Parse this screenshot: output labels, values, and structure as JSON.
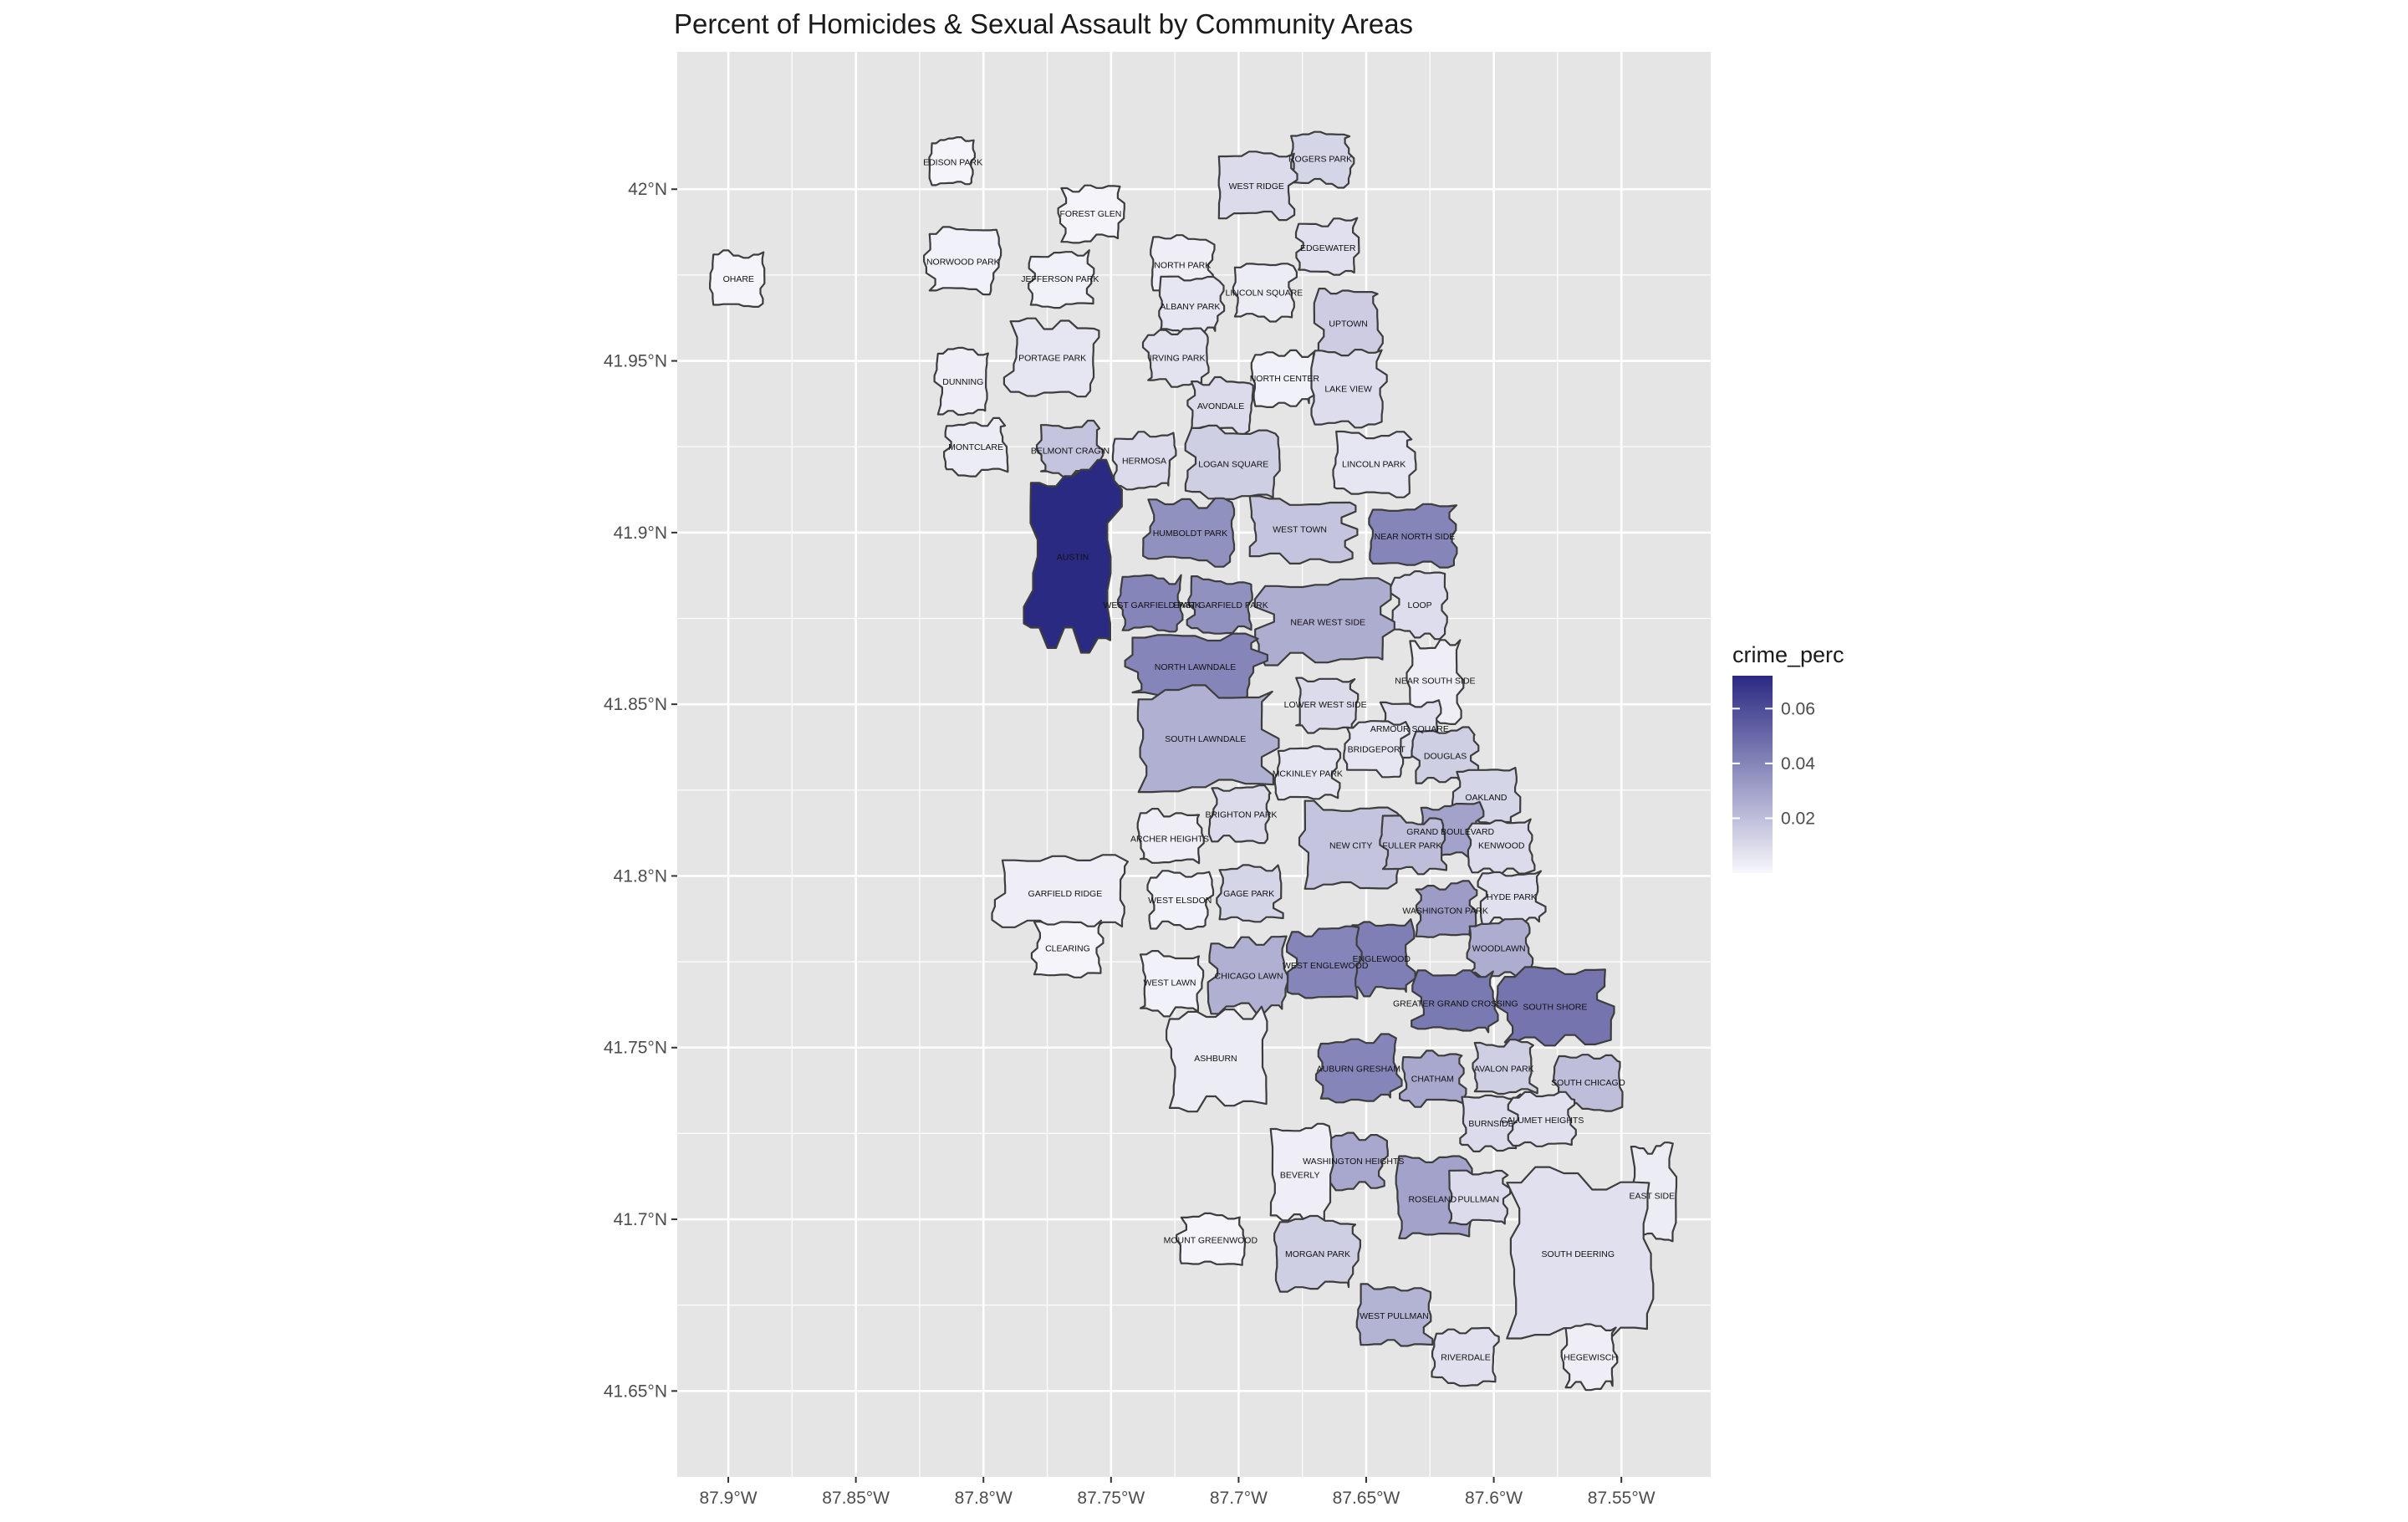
{
  "title": "Percent of Homicides & Sexual Assault by Community Areas",
  "colors": {
    "panel": "#e5e5e5",
    "grid": "#ffffff",
    "low": "#f7f7fc",
    "high": "#2b2a83",
    "border": "#3d3d3d"
  },
  "chart_data": {
    "type": "choropleth",
    "title": "Percent of Homicides & Sexual Assault by Community Areas",
    "xlim": [
      -87.92,
      -87.515
    ],
    "ylim": [
      41.625,
      42.04
    ],
    "x_ticks": [
      {
        "value": -87.9,
        "label": "87.9°W"
      },
      {
        "value": -87.85,
        "label": "87.85°W"
      },
      {
        "value": -87.8,
        "label": "87.8°W"
      },
      {
        "value": -87.75,
        "label": "87.75°W"
      },
      {
        "value": -87.7,
        "label": "87.7°W"
      },
      {
        "value": -87.65,
        "label": "87.65°W"
      },
      {
        "value": -87.6,
        "label": "87.6°W"
      },
      {
        "value": -87.55,
        "label": "87.55°W"
      }
    ],
    "y_ticks": [
      {
        "value": 42.0,
        "label": "42°N"
      },
      {
        "value": 41.95,
        "label": "41.95°N"
      },
      {
        "value": 41.9,
        "label": "41.9°N"
      },
      {
        "value": 41.85,
        "label": "41.85°N"
      },
      {
        "value": 41.8,
        "label": "41.8°N"
      },
      {
        "value": 41.75,
        "label": "41.75°N"
      },
      {
        "value": 41.7,
        "label": "41.7°N"
      },
      {
        "value": 41.65,
        "label": "41.65°N"
      }
    ],
    "legend": {
      "title": "crime_perc",
      "min": 0.0,
      "max": 0.072,
      "ticks": [
        {
          "value": 0.02,
          "label": "0.02"
        },
        {
          "value": 0.04,
          "label": "0.04"
        },
        {
          "value": 0.06,
          "label": "0.06"
        }
      ],
      "position": "right"
    },
    "areas": [
      {
        "name": "EDISON PARK",
        "lon": -87.812,
        "lat": 42.008,
        "value": 0.001
      },
      {
        "name": "FOREST GLEN",
        "lon": -87.758,
        "lat": 41.993,
        "value": 0.001
      },
      {
        "name": "ROGERS PARK",
        "lon": -87.668,
        "lat": 42.009,
        "value": 0.012
      },
      {
        "name": "WEST RIDGE",
        "lon": -87.693,
        "lat": 42.001,
        "value": 0.01
      },
      {
        "name": "NORWOOD PARK",
        "lon": -87.808,
        "lat": 41.979,
        "value": 0.002
      },
      {
        "name": "NORTH PARK",
        "lon": -87.722,
        "lat": 41.978,
        "value": 0.003
      },
      {
        "name": "EDGEWATER",
        "lon": -87.665,
        "lat": 41.983,
        "value": 0.008
      },
      {
        "name": "OHARE",
        "lon": -87.896,
        "lat": 41.974,
        "value": 0.001
      },
      {
        "name": "JEFFERSON PARK",
        "lon": -87.77,
        "lat": 41.974,
        "value": 0.002
      },
      {
        "name": "LINCOLN SQUARE",
        "lon": -87.69,
        "lat": 41.97,
        "value": 0.004
      },
      {
        "name": "ALBANY PARK",
        "lon": -87.719,
        "lat": 41.966,
        "value": 0.006
      },
      {
        "name": "UPTOWN",
        "lon": -87.657,
        "lat": 41.961,
        "value": 0.015
      },
      {
        "name": "PORTAGE PARK",
        "lon": -87.773,
        "lat": 41.951,
        "value": 0.006
      },
      {
        "name": "IRVING PARK",
        "lon": -87.724,
        "lat": 41.951,
        "value": 0.007
      },
      {
        "name": "NORTH CENTER",
        "lon": -87.682,
        "lat": 41.945,
        "value": 0.002
      },
      {
        "name": "DUNNING",
        "lon": -87.808,
        "lat": 41.944,
        "value": 0.003
      },
      {
        "name": "LAKE VIEW",
        "lon": -87.657,
        "lat": 41.942,
        "value": 0.009
      },
      {
        "name": "AVONDALE",
        "lon": -87.707,
        "lat": 41.937,
        "value": 0.01
      },
      {
        "name": "MONTCLARE",
        "lon": -87.803,
        "lat": 41.925,
        "value": 0.004
      },
      {
        "name": "BELMONT CRAGIN",
        "lon": -87.766,
        "lat": 41.924,
        "value": 0.018
      },
      {
        "name": "HERMOSA",
        "lon": -87.737,
        "lat": 41.921,
        "value": 0.01
      },
      {
        "name": "LOGAN SQUARE",
        "lon": -87.702,
        "lat": 41.92,
        "value": 0.014
      },
      {
        "name": "LINCOLN PARK",
        "lon": -87.647,
        "lat": 41.92,
        "value": 0.006
      },
      {
        "name": "HUMBOLDT PARK",
        "lon": -87.719,
        "lat": 41.9,
        "value": 0.036
      },
      {
        "name": "WEST TOWN",
        "lon": -87.676,
        "lat": 41.901,
        "value": 0.018
      },
      {
        "name": "NEAR NORTH SIDE",
        "lon": -87.631,
        "lat": 41.899,
        "value": 0.04
      },
      {
        "name": "AUSTIN",
        "lon": -87.765,
        "lat": 41.893,
        "value": 0.072
      },
      {
        "name": "WEST GARFIELD PARK",
        "lon": -87.734,
        "lat": 41.879,
        "value": 0.04
      },
      {
        "name": "EAST GARFIELD PARK",
        "lon": -87.707,
        "lat": 41.879,
        "value": 0.036
      },
      {
        "name": "LOOP",
        "lon": -87.629,
        "lat": 41.879,
        "value": 0.009
      },
      {
        "name": "NEAR WEST SIDE",
        "lon": -87.665,
        "lat": 41.874,
        "value": 0.026
      },
      {
        "name": "NORTH LAWNDALE",
        "lon": -87.717,
        "lat": 41.861,
        "value": 0.04
      },
      {
        "name": "NEAR SOUTH SIDE",
        "lon": -87.623,
        "lat": 41.857,
        "value": 0.003
      },
      {
        "name": "LOWER WEST SIDE",
        "lon": -87.666,
        "lat": 41.85,
        "value": 0.01
      },
      {
        "name": "ARMOUR SQUARE",
        "lon": -87.633,
        "lat": 41.843,
        "value": 0.008
      },
      {
        "name": "SOUTH LAWNDALE",
        "lon": -87.713,
        "lat": 41.84,
        "value": 0.025
      },
      {
        "name": "BRIDGEPORT",
        "lon": -87.646,
        "lat": 41.837,
        "value": 0.006
      },
      {
        "name": "DOUGLAS",
        "lon": -87.619,
        "lat": 41.835,
        "value": 0.014
      },
      {
        "name": "MCKINLEY PARK",
        "lon": -87.673,
        "lat": 41.83,
        "value": 0.006
      },
      {
        "name": "OAKLAND",
        "lon": -87.603,
        "lat": 41.823,
        "value": 0.012
      },
      {
        "name": "BRIGHTON PARK",
        "lon": -87.699,
        "lat": 41.818,
        "value": 0.01
      },
      {
        "name": "GRAND BOULEVARD",
        "lon": -87.617,
        "lat": 41.813,
        "value": 0.03
      },
      {
        "name": "KENWOOD",
        "lon": -87.597,
        "lat": 41.809,
        "value": 0.01
      },
      {
        "name": "ARCHER HEIGHTS",
        "lon": -87.727,
        "lat": 41.811,
        "value": 0.003
      },
      {
        "name": "NEW CITY",
        "lon": -87.656,
        "lat": 41.809,
        "value": 0.018
      },
      {
        "name": "FULLER PARK",
        "lon": -87.632,
        "lat": 41.809,
        "value": 0.02
      },
      {
        "name": "GARFIELD RIDGE",
        "lon": -87.768,
        "lat": 41.795,
        "value": 0.003
      },
      {
        "name": "WEST ELSDON",
        "lon": -87.723,
        "lat": 41.793,
        "value": 0.002
      },
      {
        "name": "GAGE PARK",
        "lon": -87.696,
        "lat": 41.795,
        "value": 0.012
      },
      {
        "name": "HYDE PARK",
        "lon": -87.593,
        "lat": 41.794,
        "value": 0.008
      },
      {
        "name": "WASHINGTON PARK",
        "lon": -87.619,
        "lat": 41.79,
        "value": 0.032
      },
      {
        "name": "CLEARING",
        "lon": -87.767,
        "lat": 41.779,
        "value": 0.001
      },
      {
        "name": "WOODLAWN",
        "lon": -87.598,
        "lat": 41.779,
        "value": 0.026
      },
      {
        "name": "ENGLEWOOD",
        "lon": -87.644,
        "lat": 41.776,
        "value": 0.042
      },
      {
        "name": "WEST ENGLEWOOD",
        "lon": -87.666,
        "lat": 41.774,
        "value": 0.04
      },
      {
        "name": "CHICAGO LAWN",
        "lon": -87.696,
        "lat": 41.771,
        "value": 0.025
      },
      {
        "name": "WEST LAWN",
        "lon": -87.727,
        "lat": 41.769,
        "value": 0.002
      },
      {
        "name": "SOUTH SHORE",
        "lon": -87.576,
        "lat": 41.762,
        "value": 0.046
      },
      {
        "name": "GREATER GRAND CROSSING",
        "lon": -87.615,
        "lat": 41.763,
        "value": 0.044
      },
      {
        "name": "ASHBURN",
        "lon": -87.709,
        "lat": 41.747,
        "value": 0.004
      },
      {
        "name": "AUBURN GRESHAM",
        "lon": -87.653,
        "lat": 41.744,
        "value": 0.04
      },
      {
        "name": "AVALON PARK",
        "lon": -87.596,
        "lat": 41.744,
        "value": 0.014
      },
      {
        "name": "CHATHAM",
        "lon": -87.624,
        "lat": 41.741,
        "value": 0.028
      },
      {
        "name": "SOUTH CHICAGO",
        "lon": -87.563,
        "lat": 41.74,
        "value": 0.02
      },
      {
        "name": "BURNSIDE",
        "lon": -87.601,
        "lat": 41.728,
        "value": 0.01
      },
      {
        "name": "CALUMET HEIGHTS",
        "lon": -87.581,
        "lat": 41.729,
        "value": 0.008
      },
      {
        "name": "WASHINGTON HEIGHTS",
        "lon": -87.655,
        "lat": 41.717,
        "value": 0.028
      },
      {
        "name": "BEVERLY",
        "lon": -87.676,
        "lat": 41.713,
        "value": 0.003
      },
      {
        "name": "ROSELAND",
        "lon": -87.624,
        "lat": 41.706,
        "value": 0.03
      },
      {
        "name": "PULLMAN",
        "lon": -87.606,
        "lat": 41.706,
        "value": 0.01
      },
      {
        "name": "EAST SIDE",
        "lon": -87.538,
        "lat": 41.707,
        "value": 0.004
      },
      {
        "name": "MOUNT GREENWOOD",
        "lon": -87.711,
        "lat": 41.694,
        "value": 0.001
      },
      {
        "name": "MORGAN PARK",
        "lon": -87.669,
        "lat": 41.69,
        "value": 0.014
      },
      {
        "name": "SOUTH DEERING",
        "lon": -87.567,
        "lat": 41.69,
        "value": 0.008
      },
      {
        "name": "WEST PULLMAN",
        "lon": -87.639,
        "lat": 41.672,
        "value": 0.024
      },
      {
        "name": "RIVERDALE",
        "lon": -87.611,
        "lat": 41.66,
        "value": 0.008
      },
      {
        "name": "HEGEWISCH",
        "lon": -87.562,
        "lat": 41.66,
        "value": 0.003
      }
    ]
  }
}
